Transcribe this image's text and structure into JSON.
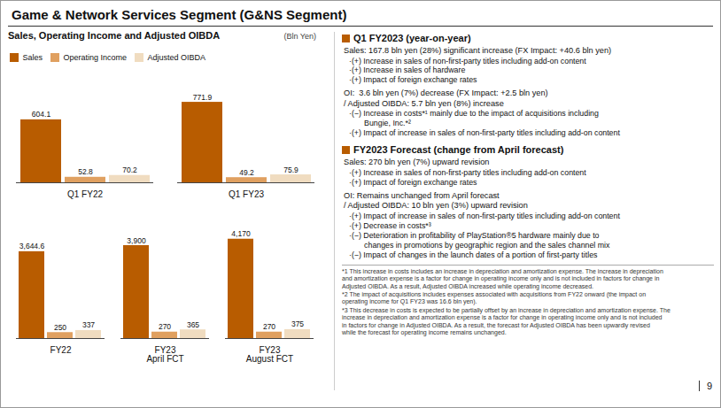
{
  "title": "Game & Network Services Segment (G&NS Segment)",
  "chart_data": [
    {
      "type": "bar",
      "subtitle": "Sales, Operating Income and Adjusted OIBDA",
      "ylabel": "(Bln Yen)",
      "categories": [
        "Q1 FY22",
        "Q1 FY23"
      ],
      "series": [
        {
          "name": "Sales",
          "color": "#b85c00",
          "values": [
            604.1,
            771.9
          ]
        },
        {
          "name": "Operating Income",
          "color": "#e0a060",
          "values": [
            52.8,
            49.2
          ]
        },
        {
          "name": "Adjusted OIBDA",
          "color": "#f0dcc0",
          "values": [
            70.2,
            75.9
          ]
        }
      ],
      "ylim": [
        0,
        900
      ],
      "grid": false,
      "legend": "upper left",
      "data_labels": true,
      "tick_labels": "x"
    },
    {
      "type": "bar",
      "categories": [
        "FY22",
        "FY23\nApril FCT",
        "FY23\nAugust FCT"
      ],
      "series": [
        {
          "name": "Sales",
          "color": "#b85c00",
          "values": [
            3644.6,
            3900,
            4170
          ],
          "value_labels": [
            "3,644.6",
            "3,900",
            "4,170"
          ]
        },
        {
          "name": "Operating Income",
          "color": "#e0a060",
          "values": [
            250.0,
            270,
            270
          ]
        },
        {
          "name": "Adjusted OIBDA",
          "color": "#f0dcc0",
          "values": [
            337.0,
            365,
            375
          ]
        }
      ],
      "ylim": [
        0,
        5200
      ],
      "grid": false,
      "data_labels": true,
      "tick_labels": "x"
    }
  ],
  "annotations": [
    [
      "Q1 FY2023 (year-on-year)",
      "Sales: 167.8 bln yen (28%) significant increase (FX Impact: +40.6 bln yen)",
      "·(+) Increase in sales of non-first-party titles including add-on content",
      "·(+) Increase in sales of hardware",
      "·(+) Impact of foreign exchange rates",
      "OI:  3.6 bln yen (7%) decrease (FX Impact: +2.5 bln yen)",
      "/ Adjusted OIBDA: 5.7 bln yen (8%) increase",
      "·(−) Increase in costs*¹ mainly due to the impact of acquisitions including\n       Bungie, Inc.*²",
      "·(+) Impact of increase in sales of non-first-party titles including add-on content"
    ],
    [
      "FY2023 Forecast (change from April forecast)",
      "Sales: 270 bln yen (7%) upward revision",
      "·(+) Increase in sales of non-first-party titles including add-on content",
      "·(+) Impact of foreign exchange rates",
      "OI: Remains unchanged from April forecast",
      "/ Adjusted OIBDA: 10 bln yen (3%) upward revision",
      "·(+) Impact of increase in sales of non-first-party titles including add-on content",
      "·(+) Decrease in costs*³",
      "·(−) Deterioration in profitability of PlayStation®5 hardware mainly due to\n       changes in promotions by geographic region and the sales channel mix",
      "·(−) Impact of changes in the launch dates of a portion of first-party titles"
    ],
    [
      "*1 This increase in costs includes an increase in depreciation and amortization expense. The increase in depreciation\nand amortization expense is a factor for change in operating income only and is not included in factors for change in\nAdjusted OIBDA. As a result, Adjusted OIBDA increased while operating income decreased.",
      "*2 The impact of acquisitions includes expenses associated with acquisitions from FY22 onward (the impact on\noperating income for Q1 FY23 was 16.6 bln yen).",
      "*3 This decrease in costs is expected to be partially offset by an increase in depreciation and amortization expense. The\nincrease in depreciation and amortization expense is a factor for change in operating income only and is not included\nin factors for change in Adjusted OIBDA. As a result, the forecast for Adjusted OIBDA has been upwardly revised\nwhile the forecast for operating income remains unchanged."
    ],
    [
      "9"
    ]
  ]
}
